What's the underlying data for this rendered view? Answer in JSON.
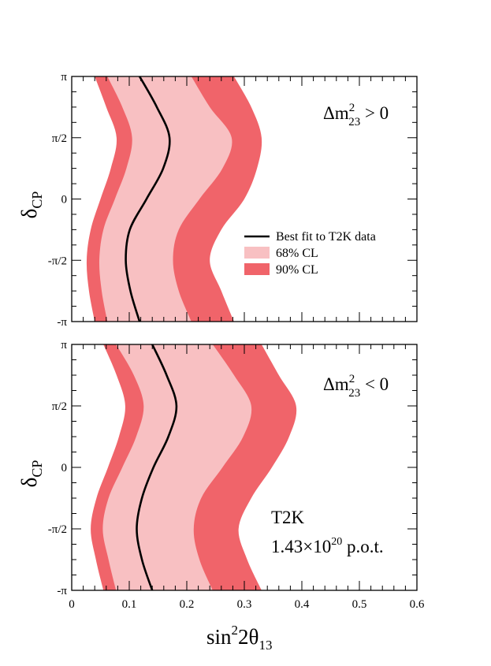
{
  "colors": {
    "cl90": "#f0646a",
    "cl68": "#f8c0c2",
    "bestfit": "#000000",
    "axis": "#000000"
  },
  "chart_data": [
    {
      "type": "area",
      "panel": "top",
      "xlim": [
        0,
        0.6
      ],
      "ylim": [
        "-π",
        "π"
      ],
      "ylabel": "δ_CP",
      "xlabel": "",
      "x_ticks": [
        0,
        0.1,
        0.2,
        0.3,
        0.4,
        0.5,
        0.6
      ],
      "y_ticks": [
        {
          "value": -1.0,
          "label": "-π"
        },
        {
          "value": -0.5,
          "label": "-π/2"
        },
        {
          "value": 0.0,
          "label": "0"
        },
        {
          "value": 0.5,
          "label": "π/2"
        },
        {
          "value": 1.0,
          "label": "π"
        }
      ],
      "y_unit": "π rad",
      "delta_cp_over_pi": [
        -1.0,
        -0.75,
        -0.5,
        -0.25,
        0.0,
        0.25,
        0.5,
        0.75,
        1.0
      ],
      "cl90_left": [
        0.04,
        0.03,
        0.026,
        0.033,
        0.05,
        0.068,
        0.078,
        0.06,
        0.04
      ],
      "cl68_left": [
        0.062,
        0.052,
        0.048,
        0.055,
        0.075,
        0.095,
        0.105,
        0.088,
        0.062
      ],
      "best_fit": [
        0.118,
        0.102,
        0.094,
        0.101,
        0.13,
        0.159,
        0.17,
        0.148,
        0.118
      ],
      "cl68_right": [
        0.208,
        0.186,
        0.176,
        0.186,
        0.222,
        0.262,
        0.278,
        0.24,
        0.208
      ],
      "cl90_right": [
        0.282,
        0.26,
        0.24,
        0.26,
        0.3,
        0.322,
        0.33,
        0.312,
        0.282
      ],
      "legend": {
        "position": "center-right",
        "entries": [
          {
            "label": "Best fit to T2K data",
            "style": "line"
          },
          {
            "label": "68% CL",
            "style": "fill"
          },
          {
            "label": "90% CL",
            "style": "fill"
          }
        ]
      },
      "annotation": {
        "main": "Δm",
        "sup": "2",
        "sub": "23",
        "tail": " > 0"
      }
    },
    {
      "type": "area",
      "panel": "bottom",
      "xlim": [
        0,
        0.6
      ],
      "ylim": [
        "-π",
        "π"
      ],
      "ylabel": "δ_CP",
      "xlabel": "sin²2θ₁₃",
      "x_ticks": [
        0,
        0.1,
        0.2,
        0.3,
        0.4,
        0.5,
        0.6
      ],
      "x_tick_labels": [
        "0",
        "0.1",
        "0.2",
        "0.3",
        "0.4",
        "0.5",
        "0.6"
      ],
      "y_ticks": [
        {
          "value": -1.0,
          "label": "-π"
        },
        {
          "value": -0.5,
          "label": "-π/2"
        },
        {
          "value": 0.0,
          "label": "0"
        },
        {
          "value": 0.5,
          "label": "π/2"
        },
        {
          "value": 1.0,
          "label": "π"
        }
      ],
      "y_unit": "π rad",
      "delta_cp_over_pi": [
        -1.0,
        -0.75,
        -0.5,
        -0.25,
        0.0,
        0.25,
        0.5,
        0.75,
        1.0
      ],
      "cl90_left": [
        0.055,
        0.042,
        0.033,
        0.043,
        0.063,
        0.082,
        0.093,
        0.078,
        0.055
      ],
      "cl68_left": [
        0.077,
        0.064,
        0.054,
        0.064,
        0.088,
        0.112,
        0.125,
        0.108,
        0.077
      ],
      "best_fit": [
        0.14,
        0.122,
        0.113,
        0.122,
        0.142,
        0.168,
        0.182,
        0.165,
        0.14
      ],
      "cl68_right": [
        0.245,
        0.222,
        0.212,
        0.225,
        0.262,
        0.298,
        0.312,
        0.282,
        0.245
      ],
      "cl90_right": [
        0.33,
        0.305,
        0.29,
        0.312,
        0.348,
        0.378,
        0.39,
        0.36,
        0.33
      ],
      "annotation": {
        "main": "Δm",
        "sup": "2",
        "sub": "23",
        "tail": " < 0"
      },
      "experiment": {
        "name": "T2K",
        "pot_prefix": "1.43×10",
        "pot_exp": "20",
        "pot_suffix": " p.o.t."
      }
    }
  ]
}
